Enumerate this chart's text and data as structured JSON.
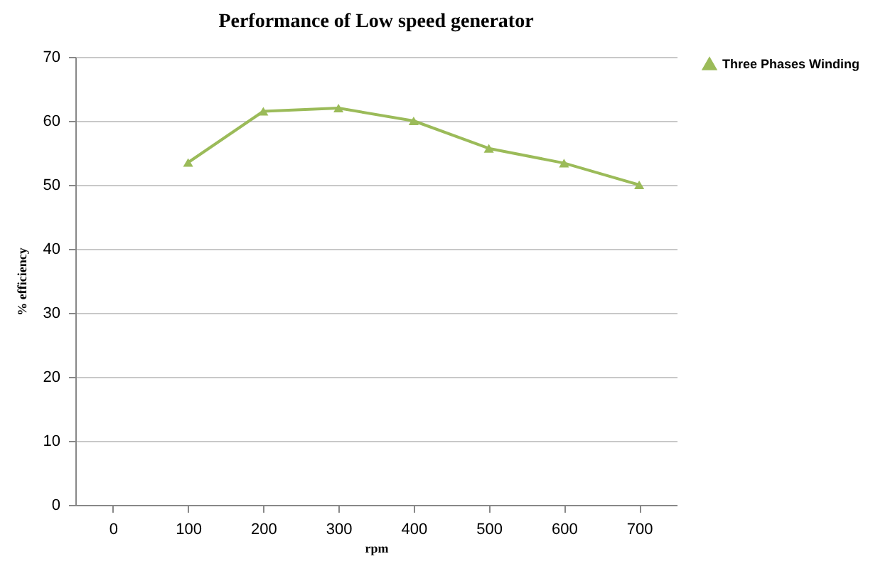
{
  "chart_data": {
    "type": "line",
    "title": "Performance of  Low speed generator",
    "xlabel": "rpm",
    "ylabel": "% efficiency",
    "categories": [
      "0",
      "100",
      "200",
      "300",
      "400",
      "500",
      "600",
      "700"
    ],
    "series": [
      {
        "name": "Three Phases Winding",
        "color": "#9bbb59",
        "values": [
          null,
          53.5,
          61.5,
          62,
          60,
          55.7,
          53.4,
          50
        ]
      }
    ],
    "ylim": [
      0,
      70
    ],
    "yticks": [
      0,
      10,
      20,
      30,
      40,
      50,
      60,
      70
    ],
    "grid": "y",
    "legend": "right",
    "marker": "triangle",
    "line_style": "solid"
  }
}
